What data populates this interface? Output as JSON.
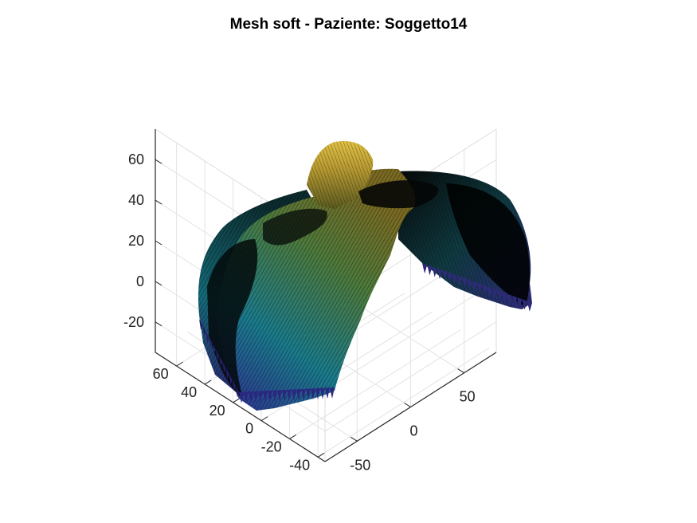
{
  "chart_data": {
    "type": "surface",
    "title": "Mesh soft - Paziente: Soggetto14",
    "xlabel": "",
    "ylabel": "",
    "zlabel": "",
    "grid": true,
    "colormap": "parula",
    "x_axis": {
      "ticks": [
        -50,
        0,
        50
      ],
      "range": [
        -80,
        80
      ]
    },
    "y_axis": {
      "ticks": [
        -40,
        -20,
        0,
        20,
        40,
        60
      ],
      "range": [
        -45,
        75
      ]
    },
    "z_axis": {
      "ticks": [
        -20,
        0,
        20,
        40,
        60
      ],
      "range": [
        -35,
        75
      ]
    },
    "view": "3d-perspective",
    "colors": {
      "low": "#3e26a8",
      "mid": "#1fb0a3",
      "high": "#f9e51f",
      "edges": "#000000"
    }
  }
}
